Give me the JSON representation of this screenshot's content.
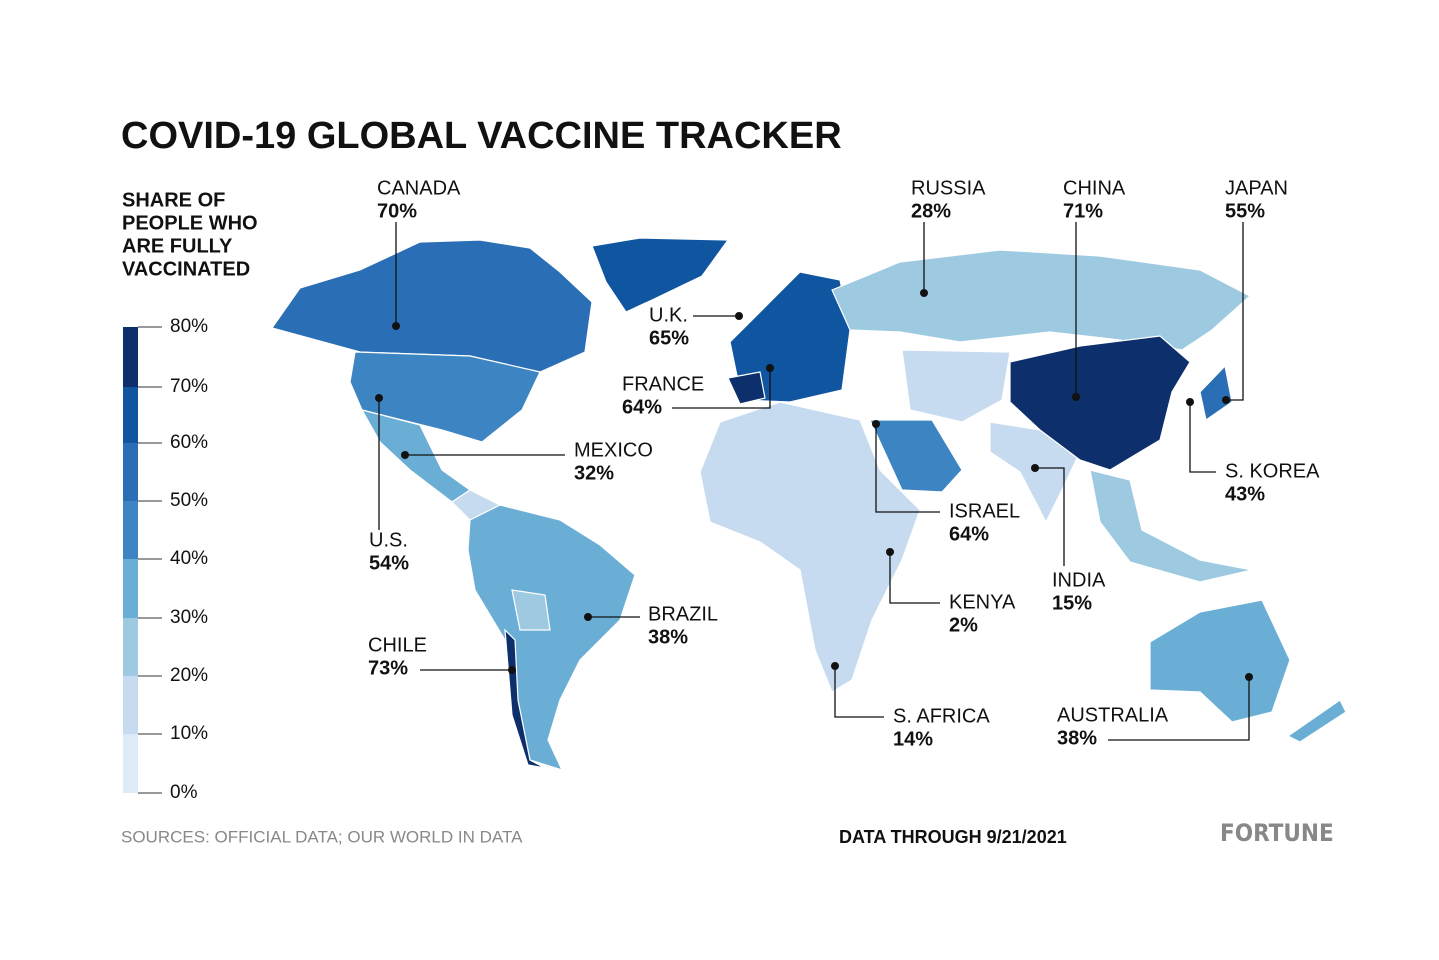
{
  "header": {
    "title": "COVID-19 GLOBAL VACCINE TRACKER"
  },
  "legend": {
    "title": [
      "SHARE OF",
      "PEOPLE WHO",
      "ARE FULLY",
      "VACCINATED"
    ],
    "ticks": [
      "80%",
      "70%",
      "60%",
      "50%",
      "40%",
      "30%",
      "20%",
      "10%",
      "0%"
    ]
  },
  "callouts": [
    {
      "name": "CANADA",
      "value": "70%"
    },
    {
      "name": "RUSSIA",
      "value": "28%"
    },
    {
      "name": "CHINA",
      "value": "71%"
    },
    {
      "name": "JAPAN",
      "value": "55%"
    },
    {
      "name": "U.K.",
      "value": "65%"
    },
    {
      "name": "FRANCE",
      "value": "64%"
    },
    {
      "name": "MEXICO",
      "value": "32%"
    },
    {
      "name": "U.S.",
      "value": "54%"
    },
    {
      "name": "ISRAEL",
      "value": "64%"
    },
    {
      "name": "KENYA",
      "value": "2%"
    },
    {
      "name": "INDIA",
      "value": "15%"
    },
    {
      "name": "S. KOREA",
      "value": "43%"
    },
    {
      "name": "BRAZIL",
      "value": "38%"
    },
    {
      "name": "CHILE",
      "value": "73%"
    },
    {
      "name": "S. AFRICA",
      "value": "14%"
    },
    {
      "name": "AUSTRALIA",
      "value": "38%"
    }
  ],
  "footer": {
    "sources": "SOURCES: OFFICIAL DATA; OUR WORLD IN DATA",
    "date": "DATA THROUGH 9/21/2021",
    "brand": "FORTUNE"
  }
}
